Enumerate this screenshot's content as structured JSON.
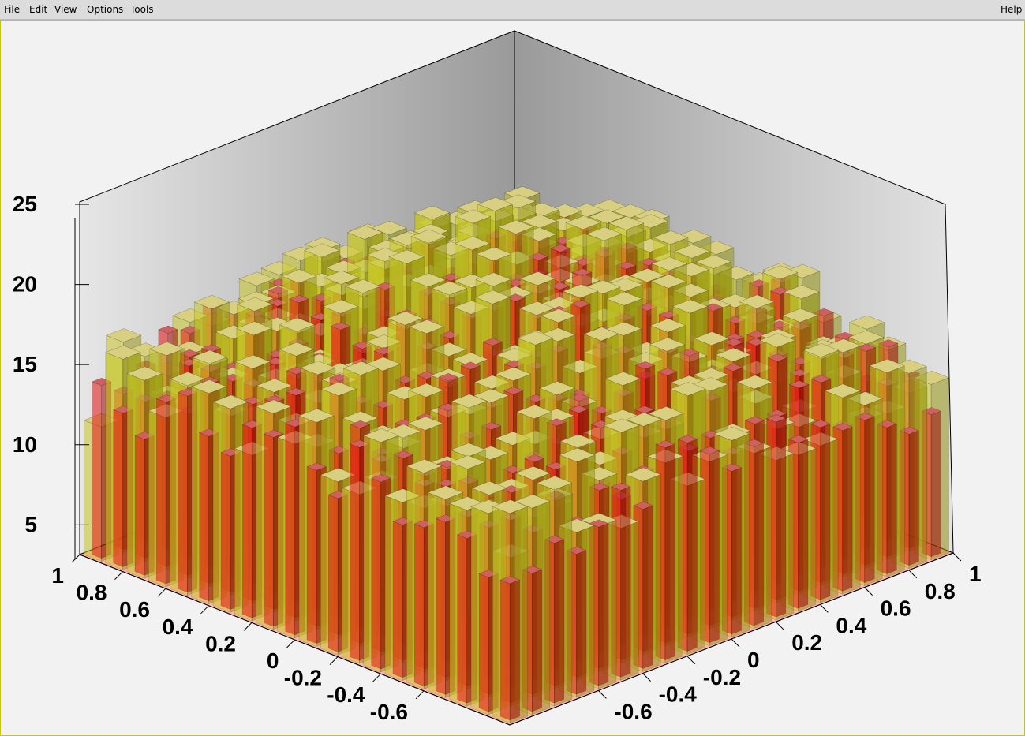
{
  "menubar": {
    "file": "File",
    "edit": "Edit",
    "view": "View",
    "options": "Options",
    "tools": "Tools",
    "help": "Help"
  },
  "colors": {
    "background": "#f2f2f2",
    "floor": "#ffb4b4",
    "series_yellow": "#e6e600",
    "series_red": "#e00000"
  },
  "chart_data": {
    "type": "lego3d",
    "title": "",
    "xlabel": "",
    "ylabel": "",
    "zlabel": "",
    "xlim": [
      -1,
      1
    ],
    "ylim": [
      -1,
      1
    ],
    "zlim": [
      3,
      25
    ],
    "bins": 20,
    "z_ticks": [
      "25",
      "20",
      "15",
      "10",
      "5"
    ],
    "left_axis_ticks": [
      "1",
      "0.8",
      "0.6",
      "0.4",
      "0.2",
      "0",
      "-0.2",
      "-0.4",
      "-0.6"
    ],
    "right_axis_ticks": [
      "-0.6",
      "-0.4",
      "-0.2",
      "0",
      "0.2",
      "0.4",
      "0.6",
      "0.8",
      "1"
    ],
    "series": [
      {
        "color": "yellow",
        "peak": 22,
        "spread": 0.55,
        "noise": 5
      },
      {
        "color": "red",
        "peak": 20,
        "spread": 0.6,
        "noise": 4
      }
    ]
  }
}
